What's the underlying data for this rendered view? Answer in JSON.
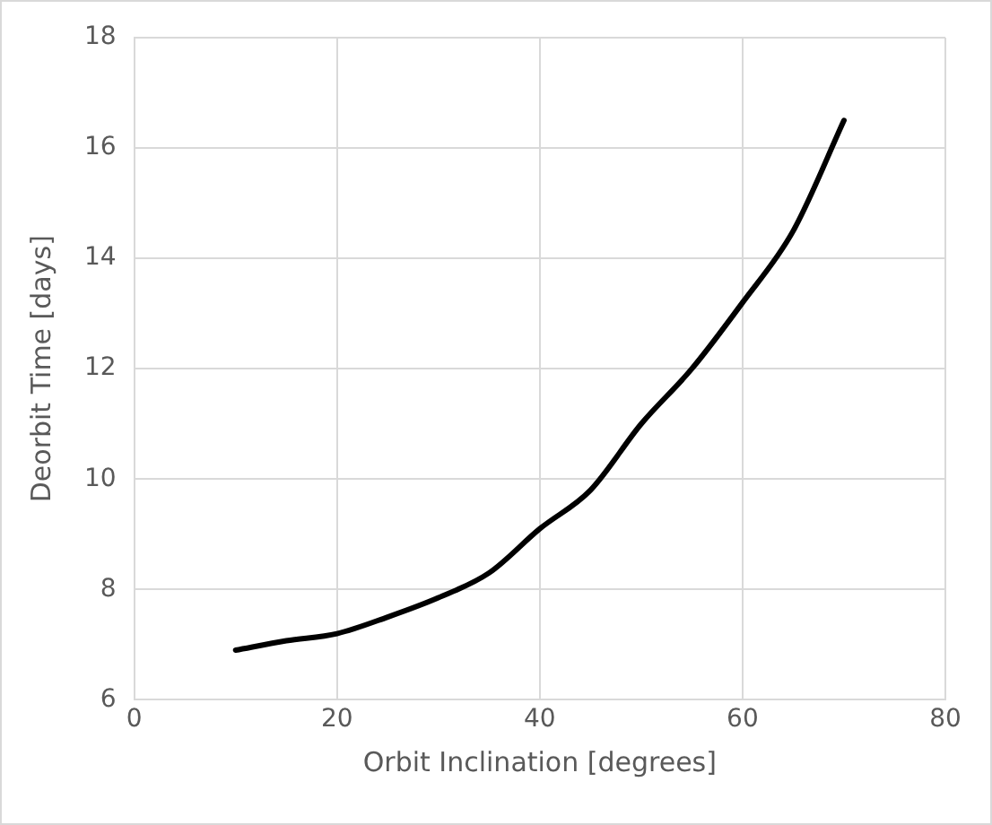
{
  "chart_data": {
    "type": "line",
    "xlabel": "Orbit Inclination [degrees]",
    "ylabel": "Deorbit Time [days]",
    "x": [
      10,
      15,
      20,
      25,
      30,
      35,
      40,
      45,
      50,
      55,
      60,
      65,
      70
    ],
    "series": [
      {
        "color": "#000000",
        "values": [
          6.9,
          7.07,
          7.2,
          7.5,
          7.85,
          8.3,
          9.1,
          9.8,
          11.0,
          12.0,
          13.2,
          14.5,
          16.5
        ]
      }
    ],
    "xlim": [
      0,
      80
    ],
    "xticks": [
      0,
      20,
      40,
      60,
      80
    ],
    "ylim": [
      6,
      18
    ],
    "yticks": [
      6,
      8,
      10,
      12,
      14,
      16,
      18
    ],
    "grid": true,
    "legend": false,
    "marker": "none",
    "line_style": "solid"
  }
}
